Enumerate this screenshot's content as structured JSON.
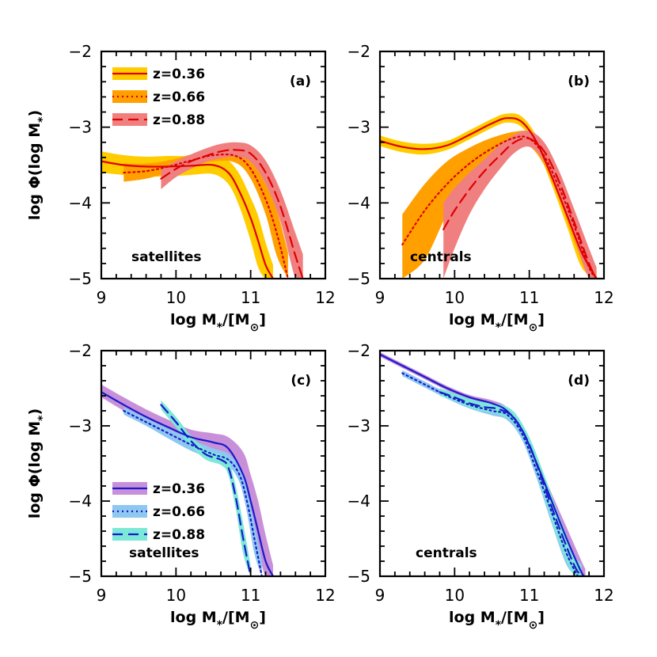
{
  "figure": {
    "xlabel_main": "log M",
    "xlabel_sub": "*",
    "xlabel_tail": "/[M",
    "xlabel_sun": "⊙",
    "xlabel_close": "]",
    "ylabel_main": "log Φ(log M",
    "ylabel_sub": "*",
    "ylabel_close": ")"
  },
  "chart_data": [
    {
      "id": "a",
      "type": "line",
      "panel_label": "(a)",
      "annotation": "satellites",
      "xlim": [
        9,
        12
      ],
      "ylim": [
        -5,
        -2
      ],
      "xticks": [
        9,
        10,
        11,
        12
      ],
      "yticks": [
        -2,
        -3,
        -4,
        -5
      ],
      "xtick_labels": [
        "9",
        "10",
        "11",
        "12"
      ],
      "ytick_labels": [
        "−2",
        "−3",
        "−4",
        "−5"
      ],
      "legend": "top-left",
      "series": [
        {
          "name": "z=0.36",
          "style": "solid",
          "color": "#e00000",
          "band_color": "#ffcc00",
          "x": [
            9.0,
            9.3,
            9.6,
            9.9,
            10.2,
            10.5,
            10.7,
            10.85,
            11.0,
            11.1,
            11.2,
            11.3
          ],
          "y": [
            -3.45,
            -3.5,
            -3.52,
            -3.52,
            -3.51,
            -3.5,
            -3.6,
            -3.85,
            -4.2,
            -4.5,
            -4.82,
            -5.0
          ],
          "band_lo": [
            -3.6,
            -3.63,
            -3.65,
            -3.65,
            -3.63,
            -3.62,
            -3.75,
            -4.05,
            -4.5,
            -4.85,
            -5.0,
            -5.0
          ],
          "band_hi": [
            -3.32,
            -3.37,
            -3.39,
            -3.38,
            -3.38,
            -3.35,
            -3.44,
            -3.62,
            -3.93,
            -4.17,
            -4.52,
            -4.82
          ]
        },
        {
          "name": "z=0.66",
          "style": "dotted",
          "color": "#e00000",
          "band_color": "#ffa000",
          "x": [
            9.3,
            9.6,
            9.9,
            10.2,
            10.5,
            10.8,
            11.0,
            11.2,
            11.35,
            11.5
          ],
          "y": [
            -3.6,
            -3.58,
            -3.52,
            -3.44,
            -3.37,
            -3.38,
            -3.55,
            -3.95,
            -4.4,
            -5.0
          ],
          "band_lo": [
            -3.72,
            -3.68,
            -3.6,
            -3.52,
            -3.45,
            -3.47,
            -3.68,
            -4.15,
            -4.7,
            -5.0
          ],
          "band_hi": [
            -3.48,
            -3.48,
            -3.44,
            -3.36,
            -3.29,
            -3.29,
            -3.42,
            -3.75,
            -4.1,
            -4.65
          ]
        },
        {
          "name": "z=0.88",
          "style": "dashed",
          "color": "#e00000",
          "band_color": "#f08080",
          "x": [
            9.8,
            10.0,
            10.2,
            10.4,
            10.6,
            10.8,
            11.0,
            11.2,
            11.4,
            11.6,
            11.7
          ],
          "y": [
            -3.68,
            -3.55,
            -3.45,
            -3.38,
            -3.32,
            -3.3,
            -3.35,
            -3.6,
            -4.05,
            -4.7,
            -5.0
          ],
          "band_lo": [
            -3.82,
            -3.66,
            -3.55,
            -3.46,
            -3.41,
            -3.39,
            -3.46,
            -3.75,
            -4.25,
            -5.0,
            -5.0
          ],
          "band_hi": [
            -3.56,
            -3.45,
            -3.36,
            -3.28,
            -3.22,
            -3.2,
            -3.24,
            -3.44,
            -3.84,
            -4.4,
            -4.68
          ]
        }
      ]
    },
    {
      "id": "b",
      "type": "line",
      "panel_label": "(b)",
      "annotation": "centrals",
      "xlim": [
        9,
        12
      ],
      "ylim": [
        -5,
        -2
      ],
      "xticks": [
        9,
        10,
        11,
        12
      ],
      "yticks": [
        -2,
        -3,
        -4,
        -5
      ],
      "xtick_labels": [
        "9",
        "10",
        "11",
        "12"
      ],
      "ytick_labels": [
        "−2",
        "−3",
        "−4",
        "−5"
      ],
      "series": [
        {
          "name": "z=0.36",
          "style": "solid",
          "color": "#e00000",
          "band_color": "#ffcc00",
          "x": [
            9.0,
            9.3,
            9.6,
            9.9,
            10.2,
            10.5,
            10.7,
            10.9,
            11.1,
            11.3,
            11.5,
            11.7,
            11.9
          ],
          "y": [
            -3.18,
            -3.26,
            -3.29,
            -3.24,
            -3.1,
            -2.95,
            -2.88,
            -2.93,
            -3.2,
            -3.65,
            -4.15,
            -4.65,
            -5.0
          ],
          "band_lo": [
            -3.25,
            -3.33,
            -3.36,
            -3.3,
            -3.16,
            -3.01,
            -2.94,
            -3.0,
            -3.28,
            -3.76,
            -4.3,
            -4.85,
            -5.0
          ],
          "band_hi": [
            -3.11,
            -3.19,
            -3.22,
            -3.18,
            -3.04,
            -2.89,
            -2.82,
            -2.86,
            -3.12,
            -3.54,
            -4.0,
            -4.45,
            -4.85
          ]
        },
        {
          "name": "z=0.66",
          "style": "dotted",
          "color": "#e00000",
          "band_color": "#ffa000",
          "x": [
            9.3,
            9.6,
            9.9,
            10.2,
            10.5,
            10.8,
            11.0,
            11.2,
            11.4,
            11.6,
            11.8,
            11.9
          ],
          "y": [
            -4.55,
            -4.1,
            -3.75,
            -3.48,
            -3.28,
            -3.14,
            -3.15,
            -3.38,
            -3.8,
            -4.3,
            -4.85,
            -5.0
          ],
          "band_lo": [
            -5.0,
            -4.75,
            -4.15,
            -3.75,
            -3.45,
            -3.25,
            -3.25,
            -3.5,
            -3.95,
            -4.5,
            -5.0,
            -5.0
          ],
          "band_hi": [
            -4.15,
            -3.75,
            -3.45,
            -3.27,
            -3.14,
            -3.06,
            -3.07,
            -3.28,
            -3.68,
            -4.15,
            -4.7,
            -4.9
          ]
        },
        {
          "name": "z=0.88",
          "style": "dashed",
          "color": "#e00000",
          "band_color": "#f08080",
          "x": [
            9.85,
            10.0,
            10.2,
            10.4,
            10.6,
            10.8,
            11.0,
            11.2,
            11.4,
            11.6,
            11.8,
            11.9
          ],
          "y": [
            -4.35,
            -4.1,
            -3.82,
            -3.58,
            -3.38,
            -3.2,
            -3.15,
            -3.32,
            -3.72,
            -4.25,
            -4.8,
            -5.0
          ],
          "band_lo": [
            -5.0,
            -4.6,
            -4.15,
            -3.82,
            -3.56,
            -3.34,
            -3.26,
            -3.45,
            -3.88,
            -4.45,
            -5.0,
            -5.0
          ],
          "band_hi": [
            -4.0,
            -3.8,
            -3.6,
            -3.42,
            -3.24,
            -3.1,
            -3.05,
            -3.2,
            -3.58,
            -4.08,
            -4.6,
            -4.85
          ]
        }
      ]
    },
    {
      "id": "c",
      "type": "line",
      "panel_label": "(c)",
      "annotation": "satellites",
      "xlim": [
        9,
        12
      ],
      "ylim": [
        -5,
        -2
      ],
      "xticks": [
        9,
        10,
        11,
        12
      ],
      "yticks": [
        -2,
        -3,
        -4,
        -5
      ],
      "xtick_labels": [
        "9",
        "10",
        "11",
        "12"
      ],
      "ytick_labels": [
        "−2",
        "−3",
        "−4",
        "−5"
      ],
      "legend": "bottom-left",
      "series": [
        {
          "name": "z=0.36",
          "style": "solid",
          "color": "#1a1acc",
          "band_color": "#c890d8",
          "x": [
            9.0,
            9.3,
            9.6,
            9.9,
            10.2,
            10.5,
            10.7,
            10.9,
            11.0,
            11.1,
            11.2,
            11.3
          ],
          "y": [
            -2.55,
            -2.72,
            -2.88,
            -3.02,
            -3.15,
            -3.22,
            -3.3,
            -3.65,
            -4.0,
            -4.4,
            -4.8,
            -5.0
          ],
          "band_lo": [
            -2.62,
            -2.8,
            -2.97,
            -3.12,
            -3.25,
            -3.32,
            -3.42,
            -3.8,
            -4.2,
            -4.65,
            -5.0,
            -5.0
          ],
          "band_hi": [
            -2.45,
            -2.62,
            -2.78,
            -2.92,
            -3.05,
            -3.1,
            -3.15,
            -3.35,
            -3.65,
            -4.0,
            -4.45,
            -4.85
          ]
        },
        {
          "name": "z=0.66",
          "style": "dotted",
          "color": "#1a1acc",
          "band_color": "#8ec8f0",
          "x": [
            9.3,
            9.6,
            9.9,
            10.2,
            10.5,
            10.7,
            10.85,
            10.95,
            11.05,
            11.15
          ],
          "y": [
            -2.8,
            -2.95,
            -3.1,
            -3.25,
            -3.38,
            -3.45,
            -3.65,
            -4.0,
            -4.5,
            -5.0
          ],
          "band_lo": [
            -2.85,
            -3.0,
            -3.17,
            -3.33,
            -3.45,
            -3.53,
            -3.75,
            -4.15,
            -4.7,
            -5.0
          ],
          "band_hi": [
            -2.75,
            -2.9,
            -3.04,
            -3.18,
            -3.3,
            -3.37,
            -3.55,
            -3.85,
            -4.3,
            -4.8
          ]
        },
        {
          "name": "z=0.88",
          "style": "dashed",
          "color": "#1a1acc",
          "band_color": "#7ce8d8",
          "x": [
            9.8,
            10.0,
            10.2,
            10.4,
            10.6,
            10.7,
            10.8,
            10.9,
            11.0
          ],
          "y": [
            -2.72,
            -2.95,
            -3.2,
            -3.38,
            -3.45,
            -3.55,
            -3.95,
            -4.5,
            -5.0
          ],
          "band_lo": [
            -2.78,
            -3.02,
            -3.27,
            -3.45,
            -3.52,
            -3.65,
            -4.1,
            -4.7,
            -5.0
          ],
          "band_hi": [
            -2.66,
            -2.88,
            -3.13,
            -3.31,
            -3.38,
            -3.45,
            -3.8,
            -4.3,
            -4.85
          ]
        }
      ]
    },
    {
      "id": "d",
      "type": "line",
      "panel_label": "(d)",
      "annotation": "centrals",
      "xlim": [
        9,
        12
      ],
      "ylim": [
        -5,
        -2
      ],
      "xticks": [
        9,
        10,
        11,
        12
      ],
      "yticks": [
        -2,
        -3,
        -4,
        -5
      ],
      "xtick_labels": [
        "9",
        "10",
        "11",
        "12"
      ],
      "ytick_labels": [
        "−2",
        "−3",
        "−4",
        "−5"
      ],
      "series": [
        {
          "name": "z=0.36",
          "style": "solid",
          "color": "#1a1acc",
          "band_color": "#c890d8",
          "x": [
            9.0,
            9.3,
            9.6,
            9.9,
            10.2,
            10.5,
            10.7,
            10.9,
            11.1,
            11.3,
            11.5,
            11.7,
            11.75
          ],
          "y": [
            -2.05,
            -2.2,
            -2.35,
            -2.5,
            -2.62,
            -2.7,
            -2.8,
            -3.05,
            -3.5,
            -4.0,
            -4.5,
            -4.95,
            -5.0
          ],
          "band_lo": [
            -2.08,
            -2.23,
            -2.38,
            -2.53,
            -2.65,
            -2.74,
            -2.85,
            -3.1,
            -3.57,
            -4.1,
            -4.65,
            -5.0,
            -5.0
          ],
          "band_hi": [
            -2.02,
            -2.17,
            -2.32,
            -2.47,
            -2.59,
            -2.66,
            -2.75,
            -3.0,
            -3.43,
            -3.9,
            -4.35,
            -4.8,
            -4.9
          ]
        },
        {
          "name": "z=0.66",
          "style": "dotted",
          "color": "#1a1acc",
          "band_color": "#8ec8f0",
          "x": [
            9.3,
            9.6,
            9.9,
            10.2,
            10.5,
            10.7,
            10.9,
            11.1,
            11.3,
            11.5,
            11.65
          ],
          "y": [
            -2.3,
            -2.45,
            -2.6,
            -2.72,
            -2.8,
            -2.85,
            -3.1,
            -3.6,
            -4.15,
            -4.7,
            -5.0
          ],
          "band_lo": [
            -2.34,
            -2.49,
            -2.64,
            -2.77,
            -2.86,
            -2.92,
            -3.18,
            -3.7,
            -4.3,
            -4.85,
            -5.0
          ],
          "band_hi": [
            -2.26,
            -2.41,
            -2.56,
            -2.67,
            -2.74,
            -2.78,
            -3.02,
            -3.5,
            -4.0,
            -4.55,
            -4.9
          ]
        },
        {
          "name": "z=0.88",
          "style": "dashed",
          "color": "#1a1acc",
          "band_color": "#7ce8d8",
          "x": [
            9.8,
            10.0,
            10.2,
            10.4,
            10.6,
            10.8,
            11.0,
            11.2,
            11.4,
            11.6,
            11.7
          ],
          "y": [
            -2.55,
            -2.62,
            -2.7,
            -2.75,
            -2.78,
            -2.9,
            -3.25,
            -3.8,
            -4.35,
            -4.85,
            -5.0
          ],
          "band_lo": [
            -2.6,
            -2.67,
            -2.76,
            -2.81,
            -2.85,
            -2.98,
            -3.35,
            -3.95,
            -4.55,
            -5.0,
            -5.0
          ],
          "band_hi": [
            -2.5,
            -2.57,
            -2.64,
            -2.69,
            -2.71,
            -2.82,
            -3.15,
            -3.65,
            -4.2,
            -4.7,
            -4.85
          ]
        }
      ]
    }
  ]
}
